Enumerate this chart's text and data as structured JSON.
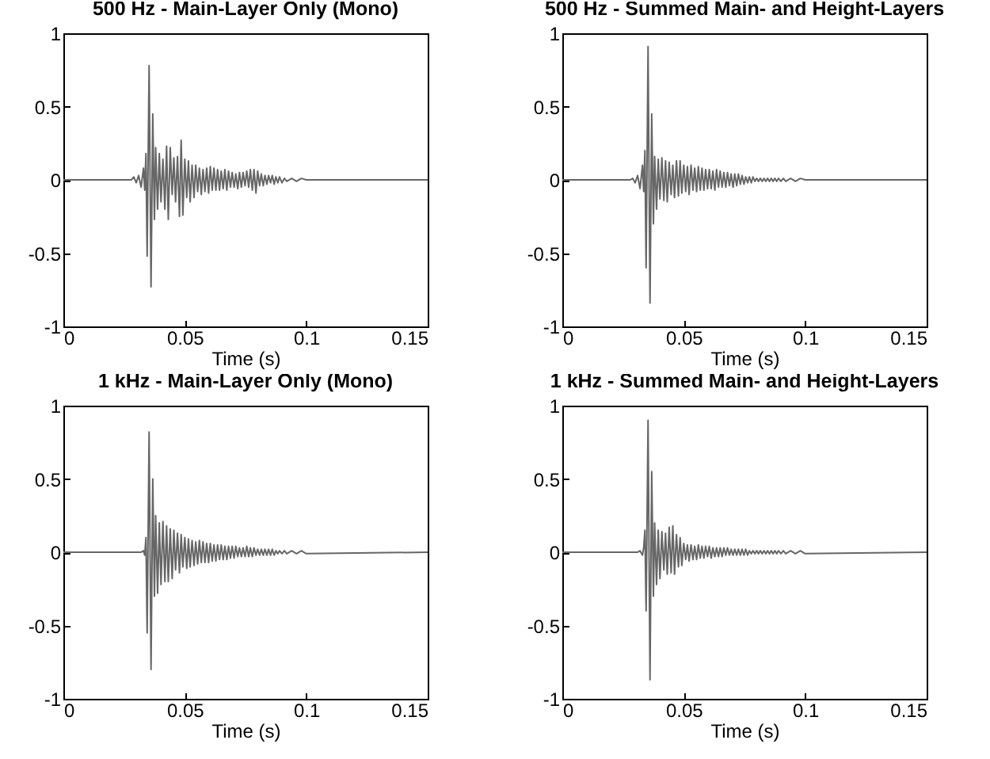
{
  "chart_data": [
    {
      "type": "line",
      "title": "500 Hz - Main-Layer Only (Mono)",
      "xlabel": "Time (s)",
      "xlim": [
        0,
        0.15
      ],
      "xticks": [
        0,
        0.05,
        0.1,
        0.15
      ],
      "ylim": [
        -1,
        1
      ],
      "yticks": [
        -1,
        -0.5,
        0,
        0.5,
        1
      ],
      "x": [
        0,
        0.028,
        0.029,
        0.03,
        0.031,
        0.032,
        0.033,
        0.0335,
        0.034,
        0.0345,
        0.0353,
        0.0361,
        0.0368,
        0.0375,
        0.038,
        0.0388,
        0.0395,
        0.0402,
        0.041,
        0.0418,
        0.0425,
        0.0432,
        0.044,
        0.0448,
        0.0455,
        0.0462,
        0.047,
        0.0478,
        0.0485,
        0.0492,
        0.05,
        0.0508,
        0.0515,
        0.0522,
        0.053,
        0.0538,
        0.0545,
        0.0553,
        0.056,
        0.0568,
        0.0575,
        0.0583,
        0.059,
        0.0598,
        0.0605,
        0.0613,
        0.062,
        0.0628,
        0.0635,
        0.0643,
        0.065,
        0.0658,
        0.0665,
        0.0673,
        0.068,
        0.0688,
        0.0695,
        0.0703,
        0.071,
        0.0718,
        0.0725,
        0.0733,
        0.074,
        0.0748,
        0.0755,
        0.0763,
        0.077,
        0.0778,
        0.0785,
        0.0793,
        0.08,
        0.0808,
        0.0815,
        0.0823,
        0.083,
        0.0838,
        0.0845,
        0.0853,
        0.086,
        0.0868,
        0.0875,
        0.0883,
        0.089,
        0.09,
        0.091,
        0.092,
        0.094,
        0.096,
        0.098,
        0.1,
        0.15
      ],
      "series": [
        {
          "color": "#666666",
          "values": [
            0,
            0,
            0.02,
            -0.02,
            0.03,
            -0.05,
            0.08,
            -0.07,
            0.18,
            -0.52,
            0.78,
            -0.73,
            0.45,
            -0.27,
            0.22,
            -0.2,
            0.18,
            -0.15,
            0.14,
            -0.2,
            0.23,
            -0.27,
            0.22,
            -0.1,
            0.15,
            -0.15,
            0.16,
            -0.25,
            0.27,
            -0.24,
            0.14,
            -0.12,
            0.13,
            -0.15,
            0.1,
            -0.12,
            0.1,
            -0.08,
            0.08,
            -0.1,
            0.07,
            -0.08,
            0.08,
            -0.09,
            0.09,
            -0.07,
            0.08,
            -0.07,
            0.07,
            -0.07,
            0.06,
            -0.06,
            0.07,
            -0.07,
            0.06,
            -0.05,
            0.05,
            -0.05,
            0.04,
            -0.06,
            0.05,
            -0.05,
            0.05,
            -0.04,
            0.06,
            -0.05,
            0.07,
            -0.07,
            0.07,
            -0.09,
            0.06,
            -0.04,
            0.04,
            -0.04,
            0.03,
            -0.03,
            0.03,
            -0.02,
            0.03,
            -0.03,
            0.02,
            -0.02,
            0.02,
            -0.02,
            0.01,
            -0.01,
            0.01,
            -0.01,
            0.01,
            0,
            0
          ]
        }
      ]
    },
    {
      "type": "line",
      "title": "500 Hz - Summed Main- and Height-Layers",
      "xlabel": "Time (s)",
      "xlim": [
        0,
        0.15
      ],
      "xticks": [
        0,
        0.05,
        0.1,
        0.15
      ],
      "ylim": [
        -1,
        1
      ],
      "yticks": [
        -1,
        -0.5,
        0,
        0.5,
        1
      ],
      "x": [
        0,
        0.028,
        0.029,
        0.03,
        0.031,
        0.032,
        0.033,
        0.0335,
        0.034,
        0.0345,
        0.0353,
        0.0361,
        0.0368,
        0.0375,
        0.038,
        0.0388,
        0.0395,
        0.0402,
        0.041,
        0.0418,
        0.0425,
        0.0432,
        0.044,
        0.0448,
        0.0455,
        0.0462,
        0.047,
        0.0478,
        0.0485,
        0.0492,
        0.05,
        0.0508,
        0.0515,
        0.0522,
        0.053,
        0.0538,
        0.0545,
        0.0553,
        0.056,
        0.0568,
        0.0575,
        0.0583,
        0.059,
        0.0598,
        0.0605,
        0.0613,
        0.062,
        0.0628,
        0.0635,
        0.0643,
        0.065,
        0.0658,
        0.0665,
        0.0673,
        0.068,
        0.0688,
        0.0695,
        0.0703,
        0.071,
        0.0718,
        0.0725,
        0.0733,
        0.074,
        0.0748,
        0.0755,
        0.0763,
        0.077,
        0.0778,
        0.0785,
        0.0793,
        0.08,
        0.0808,
        0.0815,
        0.0823,
        0.083,
        0.0838,
        0.0845,
        0.0853,
        0.086,
        0.0868,
        0.0875,
        0.0883,
        0.089,
        0.09,
        0.091,
        0.092,
        0.094,
        0.096,
        0.098,
        0.1,
        0.15
      ],
      "series": [
        {
          "color": "#666666",
          "values": [
            0,
            0,
            0.01,
            -0.02,
            0.03,
            -0.06,
            0.1,
            -0.08,
            0.2,
            -0.6,
            0.91,
            -0.84,
            0.45,
            -0.3,
            0.16,
            -0.2,
            0.14,
            -0.13,
            0.15,
            -0.14,
            0.13,
            -0.15,
            0.12,
            -0.1,
            0.1,
            -0.12,
            0.13,
            -0.11,
            0.13,
            -0.09,
            0.1,
            -0.08,
            0.09,
            -0.1,
            0.1,
            -0.07,
            0.08,
            -0.08,
            0.09,
            -0.07,
            0.08,
            -0.07,
            0.07,
            -0.06,
            0.07,
            -0.06,
            0.06,
            -0.07,
            0.07,
            -0.05,
            0.06,
            -0.05,
            0.05,
            -0.05,
            0.05,
            -0.04,
            0.04,
            -0.05,
            0.04,
            -0.04,
            0.04,
            -0.03,
            0.03,
            -0.03,
            0.02,
            -0.02,
            0.02,
            -0.02,
            0.02,
            -0.01,
            0.01,
            -0.01,
            0.01,
            -0.01,
            0.01,
            -0.01,
            0.01,
            -0.01,
            0.01,
            -0.01,
            0.01,
            -0.01,
            0.01,
            -0.01,
            0.01,
            -0.01,
            0.01,
            -0.01,
            0.01,
            0,
            0
          ]
        }
      ]
    },
    {
      "type": "line",
      "title": "1 kHz - Main-Layer Only (Mono)",
      "xlabel": "Time (s)",
      "xlim": [
        0,
        0.15
      ],
      "xticks": [
        0,
        0.05,
        0.1,
        0.15
      ],
      "ylim": [
        -1,
        1
      ],
      "yticks": [
        -1,
        -0.5,
        0,
        0.5,
        1
      ],
      "x": [
        0,
        0.028,
        0.029,
        0.03,
        0.031,
        0.032,
        0.033,
        0.0335,
        0.034,
        0.0345,
        0.0353,
        0.0361,
        0.0368,
        0.0375,
        0.038,
        0.0388,
        0.0395,
        0.0402,
        0.041,
        0.0418,
        0.0425,
        0.0432,
        0.044,
        0.0448,
        0.0455,
        0.0462,
        0.047,
        0.0478,
        0.0485,
        0.0492,
        0.05,
        0.0508,
        0.0515,
        0.0522,
        0.053,
        0.0538,
        0.0545,
        0.0553,
        0.056,
        0.0568,
        0.0575,
        0.0583,
        0.059,
        0.0598,
        0.0605,
        0.0613,
        0.062,
        0.0628,
        0.0635,
        0.0643,
        0.065,
        0.0658,
        0.0665,
        0.0673,
        0.068,
        0.0688,
        0.0695,
        0.0703,
        0.071,
        0.0718,
        0.0725,
        0.0733,
        0.074,
        0.0748,
        0.0755,
        0.0763,
        0.077,
        0.0778,
        0.0785,
        0.0793,
        0.08,
        0.0808,
        0.0815,
        0.0823,
        0.083,
        0.0838,
        0.0845,
        0.0853,
        0.086,
        0.0868,
        0.0875,
        0.0883,
        0.089,
        0.09,
        0.091,
        0.092,
        0.094,
        0.096,
        0.098,
        0.1,
        0.15
      ],
      "series": [
        {
          "color": "#666666",
          "values": [
            0,
            0,
            0,
            0,
            0,
            0,
            0.01,
            -0.02,
            0.1,
            -0.55,
            0.82,
            -0.8,
            0.5,
            -0.3,
            0.25,
            -0.28,
            0.2,
            -0.22,
            0.21,
            -0.2,
            0.18,
            -0.2,
            0.16,
            -0.18,
            0.15,
            -0.12,
            0.13,
            -0.14,
            0.12,
            -0.1,
            0.1,
            -0.11,
            0.09,
            -0.1,
            0.08,
            -0.09,
            0.07,
            -0.08,
            0.08,
            -0.07,
            0.07,
            -0.07,
            0.06,
            -0.07,
            0.06,
            -0.06,
            0.05,
            -0.06,
            0.05,
            -0.05,
            0.05,
            -0.05,
            0.04,
            -0.05,
            0.04,
            -0.04,
            0.04,
            -0.04,
            0.04,
            -0.03,
            0.03,
            -0.03,
            0.03,
            -0.03,
            0.04,
            -0.03,
            0.03,
            -0.03,
            0.03,
            -0.02,
            0.02,
            -0.02,
            0.02,
            -0.02,
            0.02,
            -0.02,
            0.02,
            -0.02,
            0.02,
            -0.02,
            0.01,
            -0.01,
            0.01,
            -0.01,
            0.01,
            -0.01,
            0.01,
            -0.01,
            0.01,
            -0.01,
            0
          ]
        }
      ]
    },
    {
      "type": "line",
      "title": "1 kHz - Summed Main- and Height-Layers",
      "xlabel": "Time (s)",
      "xlim": [
        0,
        0.15
      ],
      "xticks": [
        0,
        0.05,
        0.1,
        0.15
      ],
      "ylim": [
        -1,
        1
      ],
      "yticks": [
        -1,
        -0.5,
        0,
        0.5,
        1
      ],
      "x": [
        0,
        0.028,
        0.029,
        0.03,
        0.031,
        0.032,
        0.033,
        0.0335,
        0.034,
        0.0345,
        0.0353,
        0.0361,
        0.0368,
        0.0375,
        0.038,
        0.0388,
        0.0395,
        0.0402,
        0.041,
        0.0418,
        0.0425,
        0.0432,
        0.044,
        0.0448,
        0.0455,
        0.0462,
        0.047,
        0.0478,
        0.0485,
        0.0492,
        0.05,
        0.0508,
        0.0515,
        0.0522,
        0.053,
        0.0538,
        0.0545,
        0.0553,
        0.056,
        0.0568,
        0.0575,
        0.0583,
        0.059,
        0.0598,
        0.0605,
        0.0613,
        0.062,
        0.0628,
        0.0635,
        0.0643,
        0.065,
        0.0658,
        0.0665,
        0.0673,
        0.068,
        0.0688,
        0.0695,
        0.0703,
        0.071,
        0.0718,
        0.0725,
        0.0733,
        0.074,
        0.0748,
        0.0755,
        0.0763,
        0.077,
        0.0778,
        0.0785,
        0.0793,
        0.08,
        0.0808,
        0.0815,
        0.0823,
        0.083,
        0.0838,
        0.0845,
        0.0853,
        0.086,
        0.0868,
        0.0875,
        0.0883,
        0.089,
        0.09,
        0.091,
        0.092,
        0.094,
        0.096,
        0.098,
        0.1,
        0.15
      ],
      "series": [
        {
          "color": "#666666",
          "values": [
            0,
            0,
            0,
            0,
            0,
            0.01,
            -0.02,
            0.03,
            0.15,
            -0.4,
            0.9,
            -0.87,
            0.55,
            -0.3,
            0.2,
            -0.22,
            0.15,
            -0.18,
            0.14,
            -0.12,
            0.13,
            -0.15,
            0.17,
            -0.14,
            0.18,
            -0.15,
            0.12,
            -0.1,
            0.1,
            -0.09,
            0.06,
            -0.05,
            0.05,
            -0.06,
            0.05,
            -0.05,
            0.04,
            -0.05,
            0.05,
            -0.04,
            0.04,
            -0.04,
            0.04,
            -0.03,
            0.04,
            -0.04,
            0.03,
            -0.03,
            0.03,
            -0.03,
            0.03,
            -0.03,
            0.03,
            -0.02,
            0.03,
            -0.02,
            0.02,
            -0.02,
            0.02,
            -0.02,
            0.02,
            -0.02,
            0.02,
            -0.02,
            0.02,
            -0.02,
            0.01,
            -0.01,
            0.01,
            -0.01,
            0.01,
            -0.01,
            0.01,
            -0.01,
            0.01,
            -0.01,
            0.01,
            -0.01,
            0.01,
            -0.01,
            0.01,
            -0.01,
            0.01,
            -0.01,
            0.01,
            -0.01,
            0.01,
            -0.01,
            0.01,
            -0.01,
            0
          ]
        }
      ]
    }
  ]
}
